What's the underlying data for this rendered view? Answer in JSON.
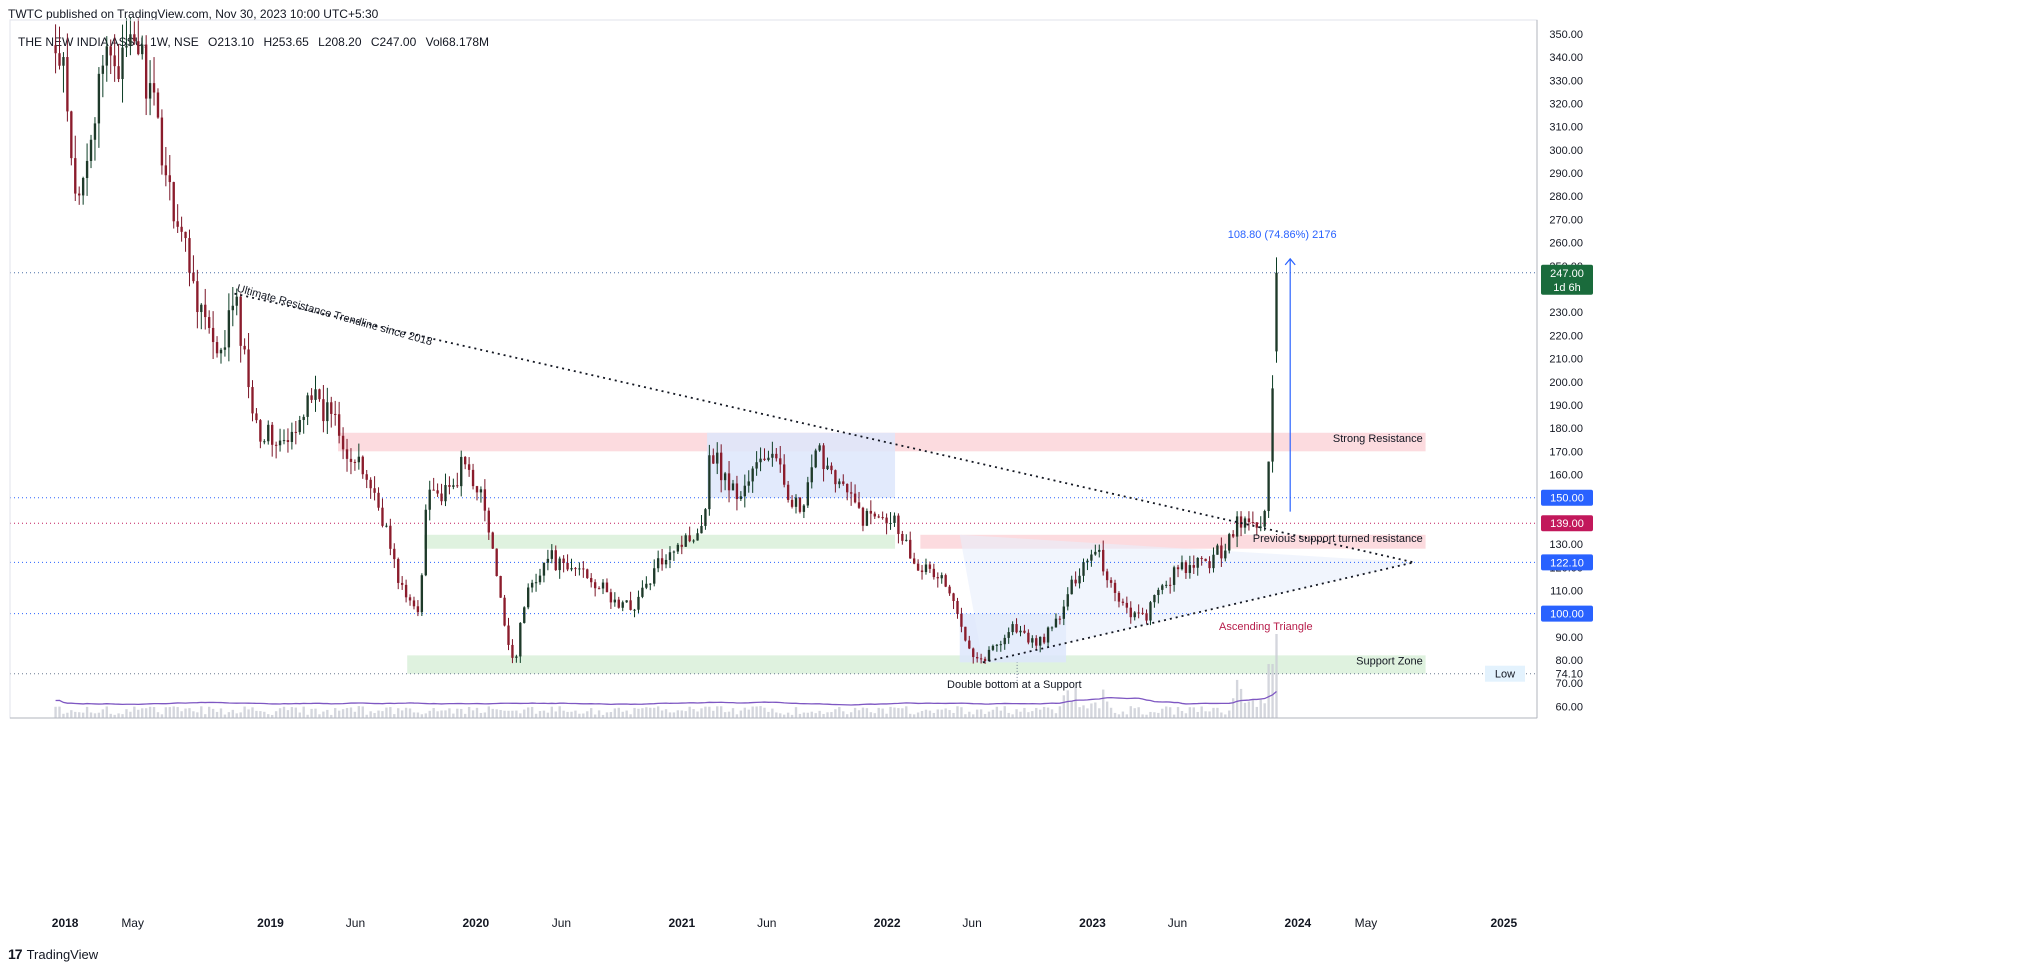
{
  "header": {
    "published_text": "TWTC published on TradingView.com, Nov 30, 2023 10:00 UTC+5:30"
  },
  "legend": {
    "symbol": "THE NEW INDIA ASSU, 1W, NSE",
    "open": "O213.10",
    "high": "H253.65",
    "low": "L208.20",
    "close": "C247.00",
    "volume": "Vol68.178M"
  },
  "footer": {
    "brand": "TradingView",
    "logo_icon": "tradingview-logo-icon"
  },
  "colors": {
    "up": "#089981",
    "down": "#f23645",
    "candle_up_body": "#1e3a2a",
    "candle_down_body": "#8b1c2c",
    "resistance_zone": "#fbd5d9",
    "support_zone": "#d9f0d9",
    "blue_box": "#dde6fb",
    "ma_line": "#7e57c2",
    "axis_text": "#131722",
    "projection": "#2962ff"
  },
  "chart_data": {
    "type": "candlestick",
    "timeframe": "1W",
    "exchange": "NSE",
    "ylim": [
      55,
      356
    ],
    "y_ticks": [
      60,
      70,
      80,
      90,
      100,
      110,
      120,
      130,
      140,
      150,
      160,
      170,
      180,
      190,
      200,
      210,
      220,
      230,
      240,
      250,
      260,
      270,
      280,
      290,
      300,
      310,
      320,
      330,
      340,
      350
    ],
    "x_ticks": [
      "2018",
      "May",
      "2019",
      "Jun",
      "2020",
      "Jun",
      "2021",
      "Jun",
      "2022",
      "Jun",
      "2023",
      "Jun",
      "2024",
      "May",
      "2025"
    ],
    "price_path": [
      [
        "2017-12-15",
        340
      ],
      [
        "2018-01-01",
        330
      ],
      [
        "2018-01-08",
        300
      ],
      [
        "2018-01-22",
        272
      ],
      [
        "2018-02-05",
        300
      ],
      [
        "2018-02-26",
        318
      ],
      [
        "2018-03-19",
        345
      ],
      [
        "2018-04-16",
        335
      ],
      [
        "2018-05-07",
        350
      ],
      [
        "2018-05-28",
        328
      ],
      [
        "2018-06-18",
        305
      ],
      [
        "2018-07-09",
        280
      ],
      [
        "2018-07-30",
        262
      ],
      [
        "2018-08-20",
        240
      ],
      [
        "2018-09-10",
        225
      ],
      [
        "2018-10-01",
        205
      ],
      [
        "2018-10-15",
        222
      ],
      [
        "2018-10-29",
        237
      ],
      [
        "2018-11-19",
        205
      ],
      [
        "2018-12-10",
        180
      ],
      [
        "2019-01-07",
        175
      ],
      [
        "2019-01-28",
        172
      ],
      [
        "2019-02-18",
        178
      ],
      [
        "2019-03-11",
        200
      ],
      [
        "2019-04-01",
        185
      ],
      [
        "2019-04-22",
        190
      ],
      [
        "2019-05-20",
        168
      ],
      [
        "2019-06-24",
        158
      ],
      [
        "2019-07-22",
        140
      ],
      [
        "2019-08-12",
        118
      ],
      [
        "2019-09-02",
        105
      ],
      [
        "2019-09-23",
        100
      ],
      [
        "2019-10-07",
        160
      ],
      [
        "2019-10-28",
        150
      ],
      [
        "2019-11-18",
        152
      ],
      [
        "2019-12-09",
        165
      ],
      [
        "2020-01-06",
        155
      ],
      [
        "2020-01-27",
        132
      ],
      [
        "2020-02-17",
        100
      ],
      [
        "2020-03-09",
        78
      ],
      [
        "2020-03-30",
        108
      ],
      [
        "2020-04-20",
        118
      ],
      [
        "2020-05-11",
        125
      ],
      [
        "2020-06-08",
        118
      ],
      [
        "2020-07-06",
        120
      ],
      [
        "2020-08-03",
        113
      ],
      [
        "2020-09-07",
        104
      ],
      [
        "2020-10-05",
        103
      ],
      [
        "2020-11-02",
        113
      ],
      [
        "2020-12-07",
        128
      ],
      [
        "2021-01-11",
        132
      ],
      [
        "2021-02-08",
        140
      ],
      [
        "2021-02-22",
        172
      ],
      [
        "2021-03-15",
        160
      ],
      [
        "2021-04-12",
        150
      ],
      [
        "2021-05-10",
        162
      ],
      [
        "2021-06-07",
        170
      ],
      [
        "2021-07-05",
        155
      ],
      [
        "2021-08-02",
        142
      ],
      [
        "2021-08-30",
        170
      ],
      [
        "2021-09-27",
        162
      ],
      [
        "2021-10-25",
        150
      ],
      [
        "2021-11-22",
        141
      ],
      [
        "2021-12-20",
        145
      ],
      [
        "2022-01-17",
        140
      ],
      [
        "2022-02-14",
        125
      ],
      [
        "2022-03-14",
        118
      ],
      [
        "2022-04-11",
        115
      ],
      [
        "2022-05-09",
        97
      ],
      [
        "2022-06-06",
        82
      ],
      [
        "2022-06-20",
        80
      ],
      [
        "2022-07-18",
        88
      ],
      [
        "2022-08-15",
        95
      ],
      [
        "2022-09-12",
        87
      ],
      [
        "2022-10-10",
        90
      ],
      [
        "2022-11-07",
        100
      ],
      [
        "2022-12-05",
        118
      ],
      [
        "2022-12-19",
        123
      ],
      [
        "2023-01-09",
        130
      ],
      [
        "2023-01-23",
        118
      ],
      [
        "2023-02-13",
        108
      ],
      [
        "2023-03-13",
        100
      ],
      [
        "2023-04-03",
        98
      ],
      [
        "2023-05-01",
        110
      ],
      [
        "2023-05-29",
        118
      ],
      [
        "2023-06-26",
        120
      ],
      [
        "2023-07-24",
        122
      ],
      [
        "2023-08-21",
        128
      ],
      [
        "2023-09-11",
        138
      ],
      [
        "2023-10-02",
        140
      ],
      [
        "2023-10-23",
        136
      ],
      [
        "2023-11-06",
        150
      ],
      [
        "2023-11-13",
        175
      ],
      [
        "2023-11-20",
        212
      ],
      [
        "2023-11-27",
        247
      ]
    ],
    "last_bar": {
      "open": 213.1,
      "high": 253.65,
      "low": 208.2,
      "close": 247.0,
      "volume": "68.178M"
    },
    "price_labels": [
      {
        "value": 247.0,
        "text": "247.00",
        "subtext": "1d 6h",
        "color": "#1a6b3c"
      },
      {
        "value": 150.0,
        "text": "150.00",
        "color": "#2962ff"
      },
      {
        "value": 139.0,
        "text": "139.00",
        "color": "#c2185b"
      },
      {
        "value": 122.1,
        "text": "122.10",
        "color": "#2962ff"
      },
      {
        "value": 100.0,
        "text": "100.00",
        "color": "#2962ff"
      },
      {
        "value": 74.1,
        "text": "74.10",
        "prefix": "Low",
        "color": "#e3f2fd"
      }
    ],
    "horizontal_lines": [
      {
        "value": 247.0,
        "color": "#4a6fa5"
      },
      {
        "value": 150.0,
        "color": "#2962ff"
      },
      {
        "value": 139.0,
        "color": "#c2185b"
      },
      {
        "value": 122.1,
        "color": "#2962ff"
      },
      {
        "value": 100.0,
        "color": "#2962ff"
      },
      {
        "value": 74.1,
        "color": "#6b7a90"
      }
    ],
    "zones": [
      {
        "name": "strong-resistance",
        "label": "Strong Resistance",
        "from": "2019-05-01",
        "to": "2024-08-15",
        "low": 170,
        "high": 178,
        "color": "#fbd5d9"
      },
      {
        "name": "previous-support",
        "label": "Previous support turned resistance",
        "from": "2022-03-01",
        "to": "2024-08-15",
        "low": 128,
        "high": 134,
        "color": "#fbd5d9"
      },
      {
        "name": "support-green-mid",
        "label": "",
        "from": "2019-10-01",
        "to": "2022-01-15",
        "low": 128,
        "high": 134,
        "color": "#d9f0d9"
      },
      {
        "name": "support-zone",
        "label": "Support Zone",
        "from": "2019-09-01",
        "to": "2024-08-15",
        "low": 74.1,
        "high": 82,
        "color": "#d9f0d9"
      },
      {
        "name": "box-2021",
        "label": "",
        "from": "2021-02-15",
        "to": "2022-01-15",
        "low": 150,
        "high": 178,
        "color": "#dde6fb"
      },
      {
        "name": "box-2022",
        "label": "",
        "from": "2022-05-10",
        "to": "2022-11-15",
        "low": 79,
        "high": 100,
        "color": "#dde6fb"
      }
    ],
    "trendlines": [
      {
        "name": "ultimate-resistance",
        "from": [
          "2018-10-29",
          238
        ],
        "to": [
          "2024-07-25",
          122.1
        ]
      },
      {
        "name": "ascending-support",
        "from": [
          "2022-06-20",
          79
        ],
        "to": [
          "2024-07-25",
          122.1
        ]
      }
    ],
    "projection": {
      "from": [
        "2023-11-27",
        144
      ],
      "to": [
        "2023-11-27",
        253
      ],
      "text": "108.80 (74.86%) 2176"
    },
    "annotations": [
      {
        "text": "Ultimate Resistance Trendline since 2018",
        "at": [
          "2018-11-01",
          239
        ],
        "rotate": 15.5
      },
      {
        "text": "Strong Resistance",
        "at": [
          "2024-08-10",
          174
        ],
        "anchor": "end"
      },
      {
        "text": "Previous support turned resistance",
        "at": [
          "2024-08-10",
          131
        ],
        "anchor": "end"
      },
      {
        "text": "Support Zone",
        "at": [
          "2024-08-10",
          78
        ],
        "anchor": "end"
      },
      {
        "text": "Ascending Triangle",
        "at": [
          "2023-11-05",
          93
        ],
        "anchor": "middle",
        "color": "#b71c4a"
      },
      {
        "text": "Double bottom at a Support",
        "at": [
          "2022-08-15",
          68
        ],
        "anchor": "middle"
      }
    ]
  }
}
